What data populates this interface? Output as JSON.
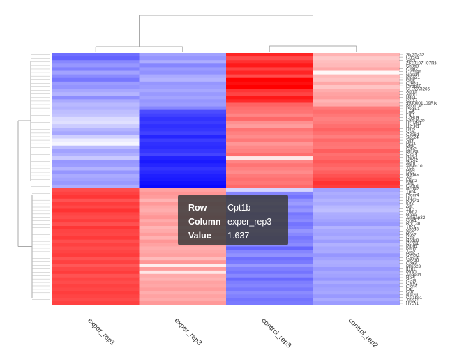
{
  "chart_data": {
    "type": "heatmap",
    "columns": [
      "exper_rep1",
      "exper_rep3",
      "control_rep3",
      "control_rep2"
    ],
    "row_labels_visible": [
      "Slc25a33",
      "Cdc34",
      "Sdc1",
      "2610107H07Rik",
      "Sh3d3",
      "Ctbp2",
      "C2cd4b",
      "Gpsd4",
      "Ptpn21",
      "Gldc",
      "Creb3",
      "Ptrbp10",
      "SLC2A3266",
      "Apod",
      "Adpr1",
      "Pitc1",
      "Ccl17",
      "9930001L09Rik",
      "Ppp1r3c",
      "Poglu1",
      "Lgr5",
      "Lrp1",
      "Cd80a",
      "Fam162b",
      "Hr_Ms1",
      "H2_K1",
      "Dio3",
      "Ccl6",
      "C8c6d",
      "Spc24",
      "Slc6",
      "Pkx1",
      "Mok",
      "Cdk2",
      "Mrps8",
      "Cxcl4",
      "Pgm1",
      "Nr2e2",
      "Agrn",
      "Adam10",
      "Aldh",
      "Stc2",
      "Nfkbia",
      "Akr1",
      "Fbln2",
      "Srf1",
      "Cebp1",
      "Ncoa2",
      "Tph1",
      "Ptger4",
      "Uqcc",
      "Rps24",
      "Klf2",
      "Agt",
      "Tfrc",
      "Trim2",
      "Rhoa",
      "Arhgap32",
      "Grik1",
      "Rnf130",
      "Tbc1",
      "Abcd3",
      "Ace",
      "Rgs2",
      "Ccl8",
      "Nedd9",
      "Ccng1",
      "Ptpn1",
      "Phb1",
      "Arg2",
      "Syncr1",
      "Casc4",
      "Slc4a1",
      "Coa3",
      "Mmp23",
      "Il1rl1",
      "Pink1",
      "Angptl4",
      "Rpl4",
      "Ctsl3",
      "Calb2",
      "Clcn4",
      "Fgr",
      "Cd7",
      "Nfe2l1",
      "Ccl1bp1",
      "Ahcy",
      "Hvcn1"
    ],
    "tooltip": {
      "row_key": "Row",
      "row_value": "Cpt1b",
      "col_key": "Column",
      "col_value": "exper_rep3",
      "value_key": "Value",
      "value_value": "1.637"
    },
    "color_scale": {
      "low": "#0000ff",
      "mid": "#ffffff",
      "high": "#ff0000"
    },
    "group1_values": [
      [
        -0.85,
        -0.55,
        1.28,
        0.45
      ],
      [
        -0.92,
        -0.62,
        1.05,
        0.32
      ],
      [
        -0.7,
        -0.48,
        1.22,
        0.38
      ],
      [
        -0.61,
        -0.71,
        1.35,
        0.41
      ],
      [
        -0.74,
        -0.59,
        1.12,
        0.51
      ],
      [
        -0.55,
        -0.65,
        1.28,
        0.05
      ],
      [
        -0.68,
        -0.5,
        1.05,
        0.42
      ],
      [
        -0.8,
        -0.45,
        1.48,
        0.36
      ],
      [
        -0.58,
        -0.62,
        1.41,
        0.52
      ],
      [
        -0.63,
        -0.58,
        1.52,
        0.35
      ],
      [
        -0.52,
        -0.52,
        1.19,
        0.48
      ],
      [
        -0.44,
        -0.6,
        1.1,
        0.55
      ],
      [
        -0.67,
        -0.54,
        1.36,
        0.58
      ],
      [
        -0.5,
        -0.62,
        1.25,
        0.44
      ],
      [
        -0.41,
        -0.58,
        0.92,
        0.51
      ],
      [
        -0.46,
        -0.72,
        0.85,
        0.78
      ],
      [
        -0.38,
        -1.05,
        0.82,
        0.86
      ],
      [
        -0.35,
        -1.12,
        0.72,
        0.8
      ],
      [
        -0.22,
        -1.2,
        0.88,
        0.74
      ],
      [
        -0.18,
        -1.15,
        0.66,
        0.78
      ],
      [
        -0.3,
        -1.22,
        0.58,
        0.85
      ],
      [
        -0.44,
        -1.18,
        0.82,
        0.92
      ],
      [
        -0.52,
        -1.12,
        0.74,
        0.84
      ],
      [
        -0.28,
        -1.28,
        0.68,
        0.76
      ],
      [
        -0.12,
        -1.15,
        0.79,
        0.88
      ],
      [
        -0.06,
        -1.22,
        0.62,
        0.82
      ],
      [
        -0.4,
        -1.24,
        0.7,
        0.8
      ],
      [
        -0.55,
        -1.18,
        0.75,
        0.95
      ],
      [
        -0.47,
        -1.1,
        0.86,
        0.84
      ],
      [
        -0.32,
        -1.3,
        0.15,
        0.88
      ],
      [
        -0.61,
        -1.35,
        0.72,
        0.98
      ],
      [
        -0.58,
        -1.28,
        0.82,
        0.92
      ],
      [
        -0.45,
        -1.2,
        0.74,
        0.86
      ],
      [
        -0.62,
        -1.26,
        0.68,
        0.94
      ],
      [
        -0.5,
        -1.32,
        0.78,
        1.02
      ],
      [
        -0.55,
        -1.35,
        0.84,
        1.1
      ],
      [
        -0.6,
        -1.4,
        0.8,
        1.2
      ],
      [
        -0.48,
        -1.45,
        0.88,
        1.15
      ]
    ],
    "group2_values": [
      [
        1.05,
        0.55,
        -0.25,
        -0.55
      ],
      [
        1.12,
        0.62,
        -0.72,
        -0.48
      ],
      [
        1.18,
        0.58,
        -0.82,
        -0.52
      ],
      [
        1.02,
        0.45,
        -0.65,
        -0.45
      ],
      [
        1.15,
        0.6,
        -0.58,
        -0.5
      ],
      [
        1.08,
        0.52,
        -0.7,
        -0.42
      ],
      [
        1.2,
        0.48,
        -0.62,
        -0.38
      ],
      [
        1.1,
        0.55,
        -0.8,
        -0.48
      ],
      [
        1.06,
        0.62,
        -0.74,
        -0.5
      ],
      [
        1.14,
        0.5,
        -0.68,
        -0.55
      ],
      [
        1.03,
        0.58,
        -0.82,
        -0.6
      ],
      [
        1.18,
        0.44,
        -0.76,
        -0.45
      ],
      [
        1.1,
        0.5,
        -0.62,
        -0.52
      ],
      [
        1.08,
        0.58,
        -0.7,
        -0.55
      ],
      [
        1.16,
        0.46,
        -0.8,
        -0.48
      ],
      [
        1.04,
        0.62,
        -0.75,
        -0.58
      ],
      [
        1.12,
        0.55,
        -0.68,
        -0.46
      ],
      [
        1.05,
        0.48,
        -0.9,
        -0.52
      ],
      [
        1.1,
        0.52,
        -0.72,
        -0.5
      ],
      [
        1.15,
        0.56,
        -0.64,
        -0.62
      ],
      [
        1.02,
        0.4,
        -0.84,
        -0.55
      ],
      [
        1.12,
        0.62,
        -0.78,
        -0.48
      ],
      [
        0.98,
        0.1,
        -0.6,
        -0.5
      ],
      [
        1.08,
        0.58,
        -0.75,
        -0.6
      ],
      [
        1.15,
        0.15,
        -0.82,
        -0.52
      ],
      [
        1.02,
        0.5,
        -0.7,
        -0.55
      ],
      [
        1.1,
        0.45,
        -0.88,
        -0.62
      ],
      [
        1.05,
        0.55,
        -0.76,
        -0.5
      ],
      [
        1.12,
        0.52,
        -0.72,
        -0.58
      ],
      [
        1.08,
        0.58,
        -0.8,
        -0.55
      ],
      [
        1.14,
        0.48,
        -0.68,
        -0.52
      ],
      [
        1.1,
        0.55,
        -0.74,
        -0.6
      ],
      [
        1.06,
        0.5,
        -0.82,
        -0.5
      ],
      [
        1.12,
        0.6,
        -0.78,
        -0.58
      ]
    ]
  }
}
